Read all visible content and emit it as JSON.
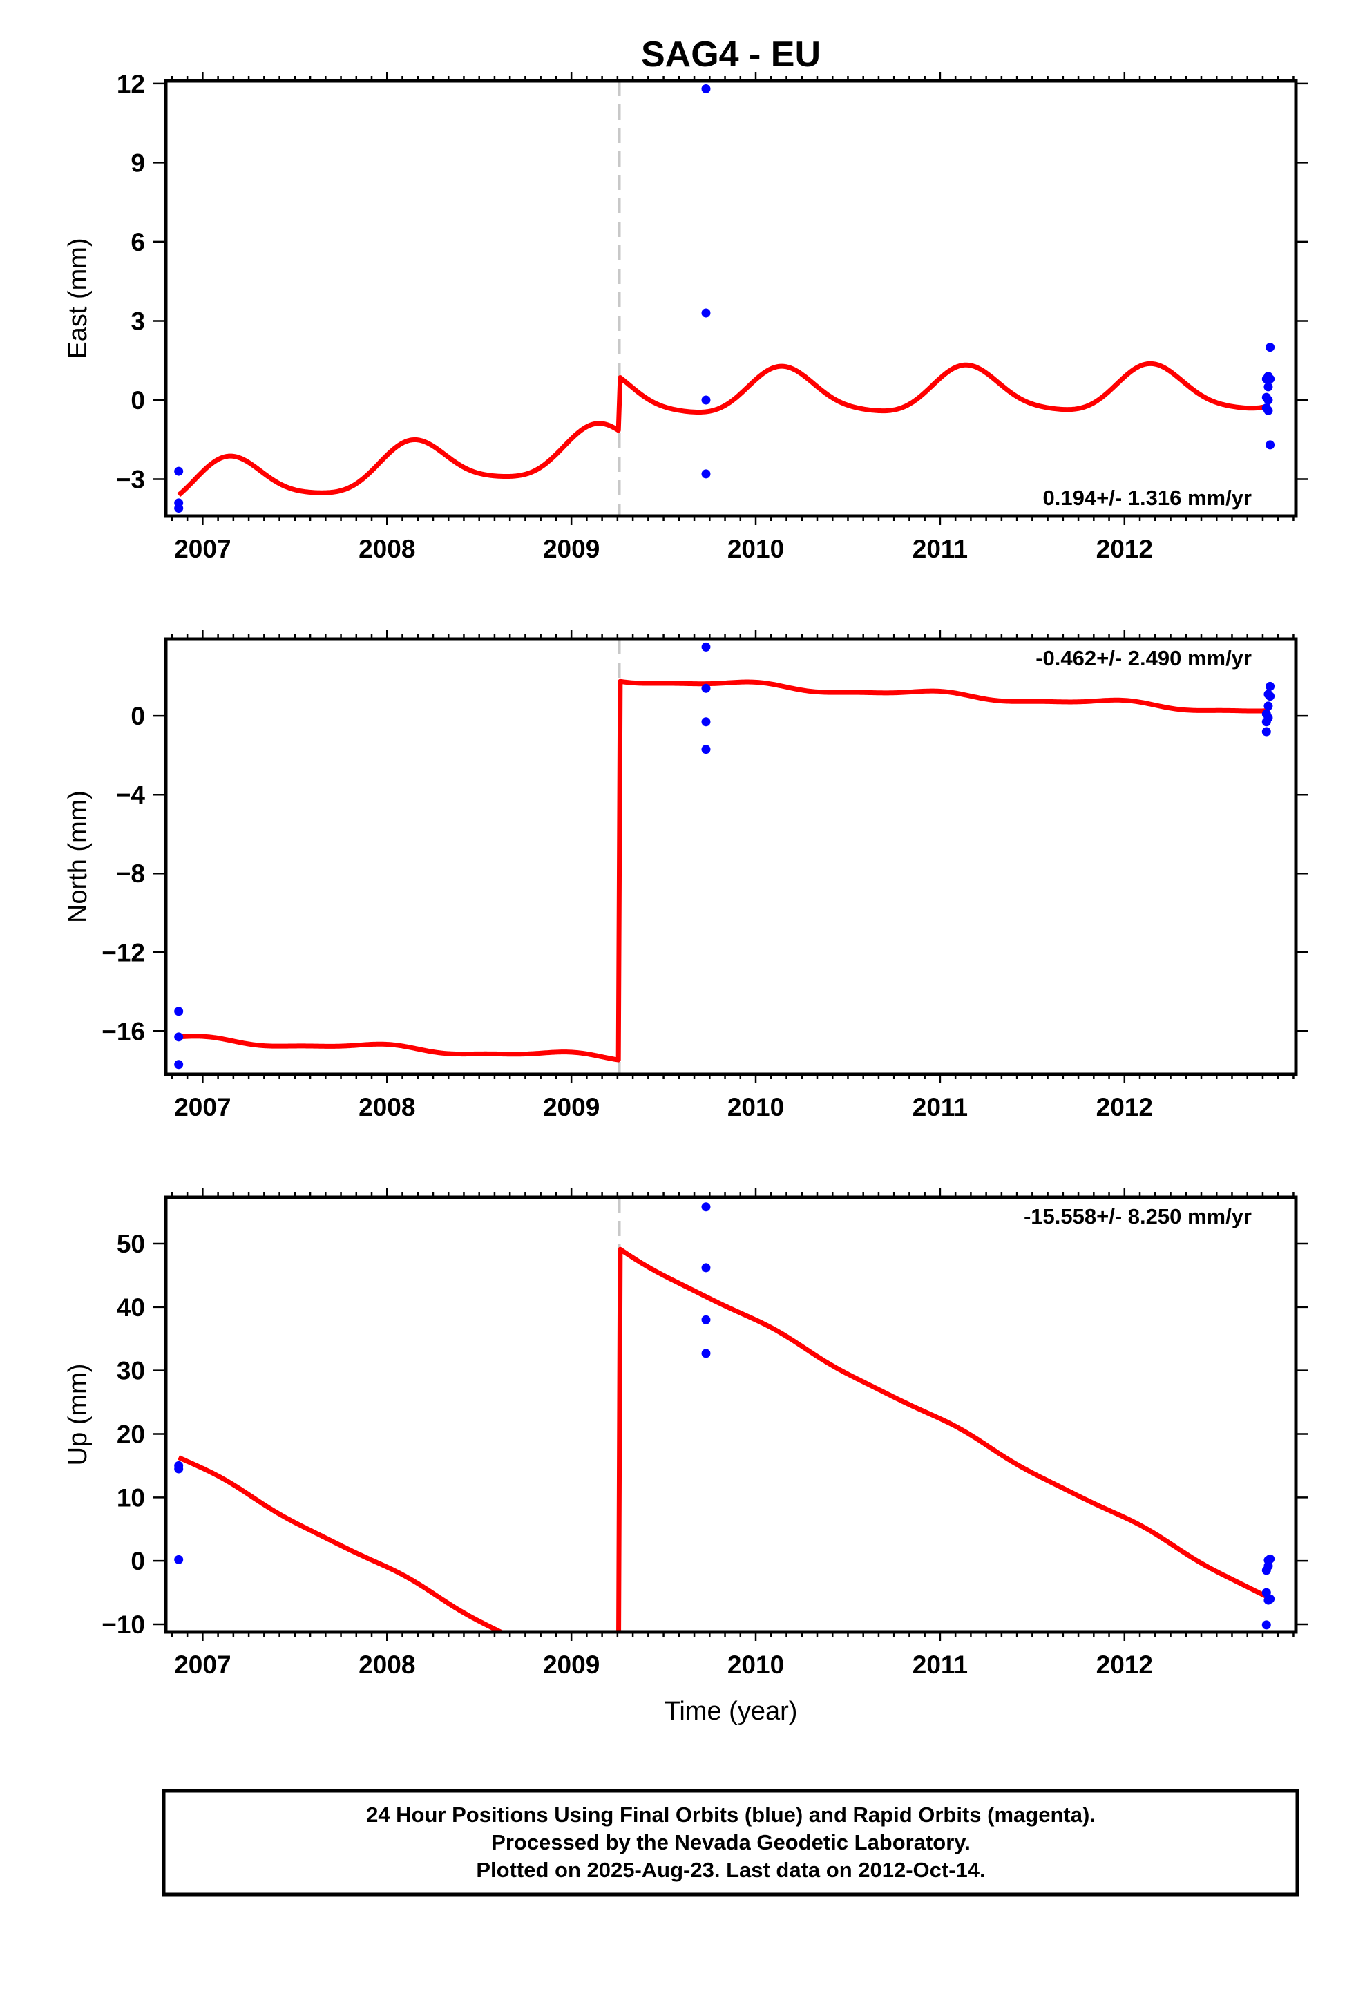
{
  "title": "SAG4 - EU",
  "xlabel": "Time (year)",
  "footer": {
    "line1": "24 Hour Positions Using Final Orbits (blue) and Rapid Orbits (magenta).",
    "line2": "Processed by the Nevada Geodetic Laboratory.",
    "line3": "Plotted on 2025-Aug-23. Last data on 2012-Oct-14."
  },
  "colors": {
    "points": "#0000ff",
    "model": "#ff0000",
    "offset_line": "#c8c8c8",
    "frame": "#000000"
  },
  "chart_data": [
    {
      "type": "scatter",
      "ylabel": "East (mm)",
      "rate": "0.194+/- 1.316 mm/yr",
      "rate_position": "bottom-right",
      "xlim": [
        2006.8,
        2012.93
      ],
      "ylim": [
        -4.4,
        12.1
      ],
      "xticks": [
        2007,
        2008,
        2009,
        2010,
        2011,
        2012
      ],
      "xtick_labels": [
        "2007",
        "2008",
        "2009",
        "2010",
        "2011",
        "2012"
      ],
      "yticks": [
        -3,
        0,
        3,
        6,
        9,
        12
      ],
      "ytick_labels": [
        "−3",
        "0",
        "3",
        "6",
        "9",
        "12"
      ],
      "offset_epoch": 2009.26,
      "points": {
        "x": [
          2006.87,
          2006.87,
          2006.87,
          2009.73,
          2009.73,
          2009.73,
          2009.73,
          2012.77,
          2012.77,
          2012.77,
          2012.78,
          2012.78,
          2012.78,
          2012.78,
          2012.79,
          2012.79,
          2012.79
        ],
        "y": [
          -2.7,
          -3.9,
          -4.1,
          11.8,
          3.3,
          0.0,
          -2.8,
          0.8,
          0.1,
          -0.3,
          0.5,
          0.9,
          0.0,
          -0.4,
          2.0,
          0.8,
          -1.7
        ]
      },
      "model": {
        "segments": [
          {
            "x_start": 2006.87,
            "x_end": 2009.255,
            "y0": -3.6,
            "trend": 0.62,
            "a1": 0.85,
            "phase1": 0.1,
            "a2": 0.15,
            "phase2": 0.5
          },
          {
            "x_start": 2009.265,
            "x_end": 2012.79,
            "y0": 0.85,
            "trend": 0.05,
            "a1": 0.85,
            "phase1": 0.1,
            "a2": 0.15,
            "phase2": 0.5
          }
        ]
      }
    },
    {
      "type": "scatter",
      "ylabel": "North (mm)",
      "rate": "-0.462+/- 2.490 mm/yr",
      "rate_position": "top-right",
      "xlim": [
        2006.8,
        2012.93
      ],
      "ylim": [
        -18.2,
        3.9
      ],
      "xticks": [
        2007,
        2008,
        2009,
        2010,
        2011,
        2012
      ],
      "xtick_labels": [
        "2007",
        "2008",
        "2009",
        "2010",
        "2011",
        "2012"
      ],
      "yticks": [
        -16,
        -12,
        -8,
        -4,
        0
      ],
      "ytick_labels": [
        "−16",
        "−12",
        "−8",
        "−4",
        "0"
      ],
      "offset_epoch": 2009.26,
      "points": {
        "x": [
          2006.87,
          2006.87,
          2006.87,
          2009.73,
          2009.73,
          2009.73,
          2009.73,
          2012.77,
          2012.77,
          2012.77,
          2012.78,
          2012.78,
          2012.78,
          2012.79,
          2012.79
        ],
        "y": [
          -15.0,
          -16.3,
          -17.7,
          3.5,
          1.4,
          -0.3,
          -1.7,
          0.1,
          -0.3,
          -0.8,
          1.1,
          0.5,
          -0.1,
          1.5,
          1.0
        ]
      },
      "model": {
        "segments": [
          {
            "x_start": 2006.87,
            "x_end": 2009.255,
            "y0": -16.3,
            "trend": -0.4,
            "a1": 0.15,
            "phase1": 0.3,
            "a2": 0.05,
            "phase2": 0.1
          },
          {
            "x_start": 2009.265,
            "x_end": 2012.79,
            "y0": 1.75,
            "trend": -0.46,
            "a1": 0.15,
            "phase1": 0.3,
            "a2": 0.05,
            "phase2": 0.1
          }
        ]
      }
    },
    {
      "type": "scatter",
      "ylabel": "Up (mm)",
      "rate": "-15.558+/- 8.250 mm/yr",
      "rate_position": "top-right",
      "xlim": [
        2006.8,
        2012.93
      ],
      "ylim": [
        -11.2,
        57.3
      ],
      "xticks": [
        2007,
        2008,
        2009,
        2010,
        2011,
        2012
      ],
      "xtick_labels": [
        "2007",
        "2008",
        "2009",
        "2010",
        "2011",
        "2012"
      ],
      "yticks": [
        -10,
        0,
        10,
        20,
        30,
        40,
        50
      ],
      "ytick_labels": [
        "−10",
        "0",
        "10",
        "20",
        "30",
        "40",
        "50"
      ],
      "offset_epoch": 2009.26,
      "points": {
        "x": [
          2006.87,
          2006.87,
          2006.87,
          2009.73,
          2009.73,
          2009.73,
          2009.73,
          2012.77,
          2012.77,
          2012.77,
          2012.78,
          2012.78,
          2012.78,
          2012.79,
          2012.79
        ],
        "y": [
          15.0,
          14.5,
          0.2,
          55.8,
          46.2,
          38.0,
          32.7,
          -1.5,
          -5.0,
          -10.1,
          -0.8,
          -6.2,
          0.1,
          0.3,
          -6.0
        ]
      },
      "model": {
        "segments": [
          {
            "x_start": 2006.87,
            "x_end": 2009.255,
            "y0": 16.3,
            "trend": -15.56,
            "a1": 0.4,
            "phase1": 0.2,
            "a2": 0.1,
            "phase2": 0.0
          },
          {
            "x_start": 2009.265,
            "x_end": 2012.79,
            "y0": 49.1,
            "trend": -15.56,
            "a1": 0.4,
            "phase1": 0.2,
            "a2": 0.1,
            "phase2": 0.0
          }
        ]
      }
    }
  ]
}
